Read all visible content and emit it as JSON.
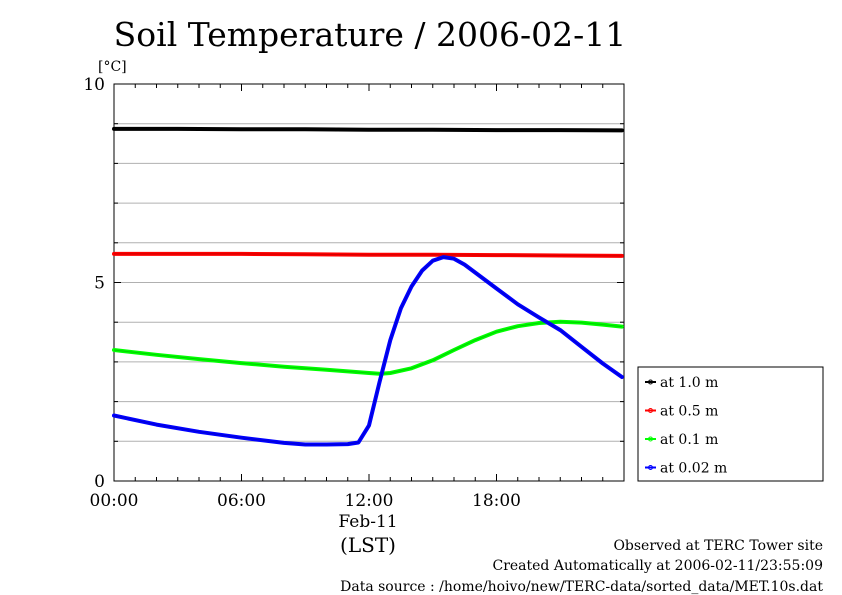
{
  "chart_data": {
    "type": "line",
    "title": "Soil Temperature / 2006-02-11",
    "ylabel": "[°C]",
    "xlabel": "(LST)",
    "date_label": "Feb-11",
    "xlim": [
      0,
      24
    ],
    "ylim": [
      0,
      10
    ],
    "x_ticks": [
      {
        "value": 0,
        "label": "00:00"
      },
      {
        "value": 6,
        "label": "06:00"
      },
      {
        "value": 12,
        "label": "12:00"
      },
      {
        "value": 18,
        "label": "18:00"
      }
    ],
    "y_ticks": [
      {
        "value": 0,
        "label": "0"
      },
      {
        "value": 5,
        "label": "5"
      },
      {
        "value": 10,
        "label": "10"
      }
    ],
    "grid": true,
    "legend_position": "right",
    "series": [
      {
        "name": "at 1.0 m",
        "color": "#000000",
        "x": [
          0,
          3,
          6,
          9,
          12,
          15,
          18,
          21,
          23.9
        ],
        "y": [
          8.87,
          8.87,
          8.86,
          8.86,
          8.85,
          8.85,
          8.84,
          8.84,
          8.83
        ]
      },
      {
        "name": "at 0.5 m",
        "color": "#ff0000",
        "x": [
          0,
          3,
          6,
          9,
          12,
          15,
          18,
          21,
          23.9
        ],
        "y": [
          5.72,
          5.72,
          5.72,
          5.71,
          5.7,
          5.7,
          5.69,
          5.68,
          5.67
        ]
      },
      {
        "name": "at 0.1 m",
        "color": "#00ff00",
        "x": [
          0,
          2,
          4,
          6,
          8,
          10,
          11,
          12,
          12.5,
          13,
          14,
          15,
          16,
          17,
          18,
          19,
          20,
          21,
          22,
          23,
          23.9
        ],
        "y": [
          3.3,
          3.18,
          3.07,
          2.97,
          2.88,
          2.8,
          2.76,
          2.72,
          2.7,
          2.72,
          2.84,
          3.04,
          3.3,
          3.55,
          3.76,
          3.9,
          3.98,
          4.01,
          3.99,
          3.94,
          3.89
        ]
      },
      {
        "name": "at 0.02 m",
        "color": "#0000ff",
        "x": [
          0,
          2,
          4,
          6,
          8,
          9,
          10,
          11,
          11.5,
          12,
          12.5,
          13,
          13.5,
          14,
          14.5,
          15,
          15.5,
          16,
          16.5,
          17,
          18,
          19,
          20,
          21,
          22,
          23,
          23.9
        ],
        "y": [
          1.65,
          1.42,
          1.24,
          1.09,
          0.96,
          0.92,
          0.92,
          0.93,
          0.97,
          1.4,
          2.5,
          3.55,
          4.35,
          4.9,
          5.3,
          5.55,
          5.64,
          5.6,
          5.45,
          5.25,
          4.85,
          4.45,
          4.12,
          3.8,
          3.38,
          2.96,
          2.62
        ]
      }
    ]
  },
  "footer": {
    "line1": "Observed at TERC Tower site",
    "line2": "Created Automatically at 2006-02-11/23:55:09",
    "line3": "Data source : /home/hoivo/new/TERC-data/sorted_data/MET.10s.dat"
  }
}
